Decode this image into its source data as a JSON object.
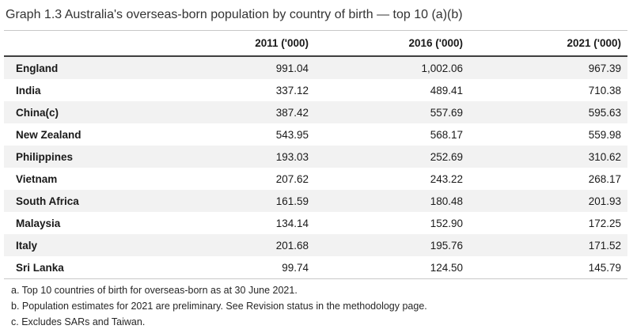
{
  "title": "Graph 1.3 Australia's overseas-born population by country of birth — top 10 (a)(b)",
  "colors": {
    "stripe": "#f2f2f2",
    "dark_rule": "#3f3f3f",
    "light_rule": "#c8c8c8",
    "title_text": "#333333"
  },
  "chart_data": {
    "type": "table",
    "title": "Graph 1.3 Australia's overseas-born population by country of birth — top 10 (a)(b)",
    "columns": [
      "",
      "2011 ('000)",
      "2016 ('000)",
      "2021 ('000)"
    ],
    "rows": [
      {
        "country": "England",
        "v2011": "991.04",
        "v2016": "1,002.06",
        "v2021": "967.39"
      },
      {
        "country": "India",
        "v2011": "337.12",
        "v2016": "489.41",
        "v2021": "710.38"
      },
      {
        "country": "China(c)",
        "v2011": "387.42",
        "v2016": "557.69",
        "v2021": "595.63"
      },
      {
        "country": "New Zealand",
        "v2011": "543.95",
        "v2016": "568.17",
        "v2021": "559.98"
      },
      {
        "country": "Philippines",
        "v2011": "193.03",
        "v2016": "252.69",
        "v2021": "310.62"
      },
      {
        "country": "Vietnam",
        "v2011": "207.62",
        "v2016": "243.22",
        "v2021": "268.17"
      },
      {
        "country": "South Africa",
        "v2011": "161.59",
        "v2016": "180.48",
        "v2021": "201.93"
      },
      {
        "country": "Malaysia",
        "v2011": "134.14",
        "v2016": "152.90",
        "v2021": "172.25"
      },
      {
        "country": "Italy",
        "v2011": "201.68",
        "v2016": "195.76",
        "v2021": "171.52"
      },
      {
        "country": "Sri Lanka",
        "v2011": "99.74",
        "v2016": "124.50",
        "v2021": "145.79"
      }
    ]
  },
  "footnotes": [
    "a. Top 10 countries of birth for overseas-born as at 30 June 2021.",
    "b. Population estimates for 2021 are preliminary. See Revision status in the methodology page.",
    "c. Excludes SARs and Taiwan."
  ]
}
